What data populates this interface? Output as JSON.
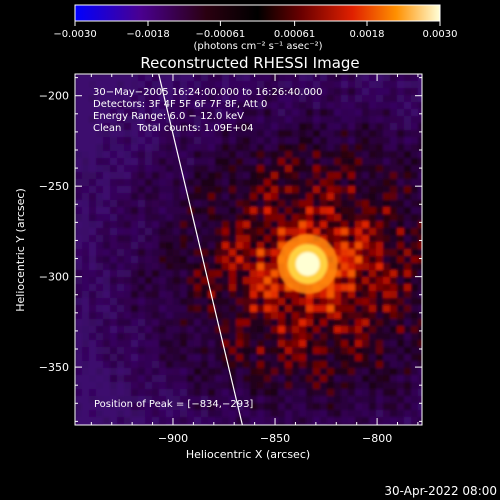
{
  "chart_data": {
    "type": "heatmap",
    "title": "Reconstructed RHESSI Image",
    "xlabel": "Heliocentric X (arcsec)",
    "ylabel": "Heliocentric Y (arcsec)",
    "xlim": [
      -948,
      -778
    ],
    "ylim": [
      -382,
      -188
    ],
    "x_ticks": [
      -900,
      -850,
      -800
    ],
    "x_tick_labels": [
      "−900",
      "−850",
      "−800"
    ],
    "y_ticks": [
      -200,
      -250,
      -300,
      -350
    ],
    "y_tick_labels": [
      "−200",
      "−250",
      "−300",
      "−350"
    ],
    "colorbar": {
      "min": -0.003,
      "max": 0.003,
      "tick_values": [
        -0.003,
        -0.0018,
        -0.00061,
        0.00061,
        0.0018,
        0.003
      ],
      "tick_labels": [
        "−0.0030",
        "−0.0018",
        "−0.00061",
        "0.00061",
        "0.0018",
        "0.0030"
      ],
      "units_label": "(photons cm⁻² s⁻¹ asec⁻²)"
    },
    "annotations": [
      "30−May−2005 16:24:00.000 to 16:26:40.000",
      "Detectors: 3F 4F 5F 6F 7F 8F, Att 0",
      "Energy Range: 6.0 − 12.0 keV",
      "Clean     Total counts: 1.09E+04"
    ],
    "peak_label": "Position of Peak = [−834,−293]",
    "peak": [
      -834,
      -293
    ],
    "limb_line": [
      [
        -907,
        -188
      ],
      [
        -866,
        -382
      ]
    ]
  },
  "footer": {
    "timestamp": "30-Apr-2022 08:00"
  }
}
